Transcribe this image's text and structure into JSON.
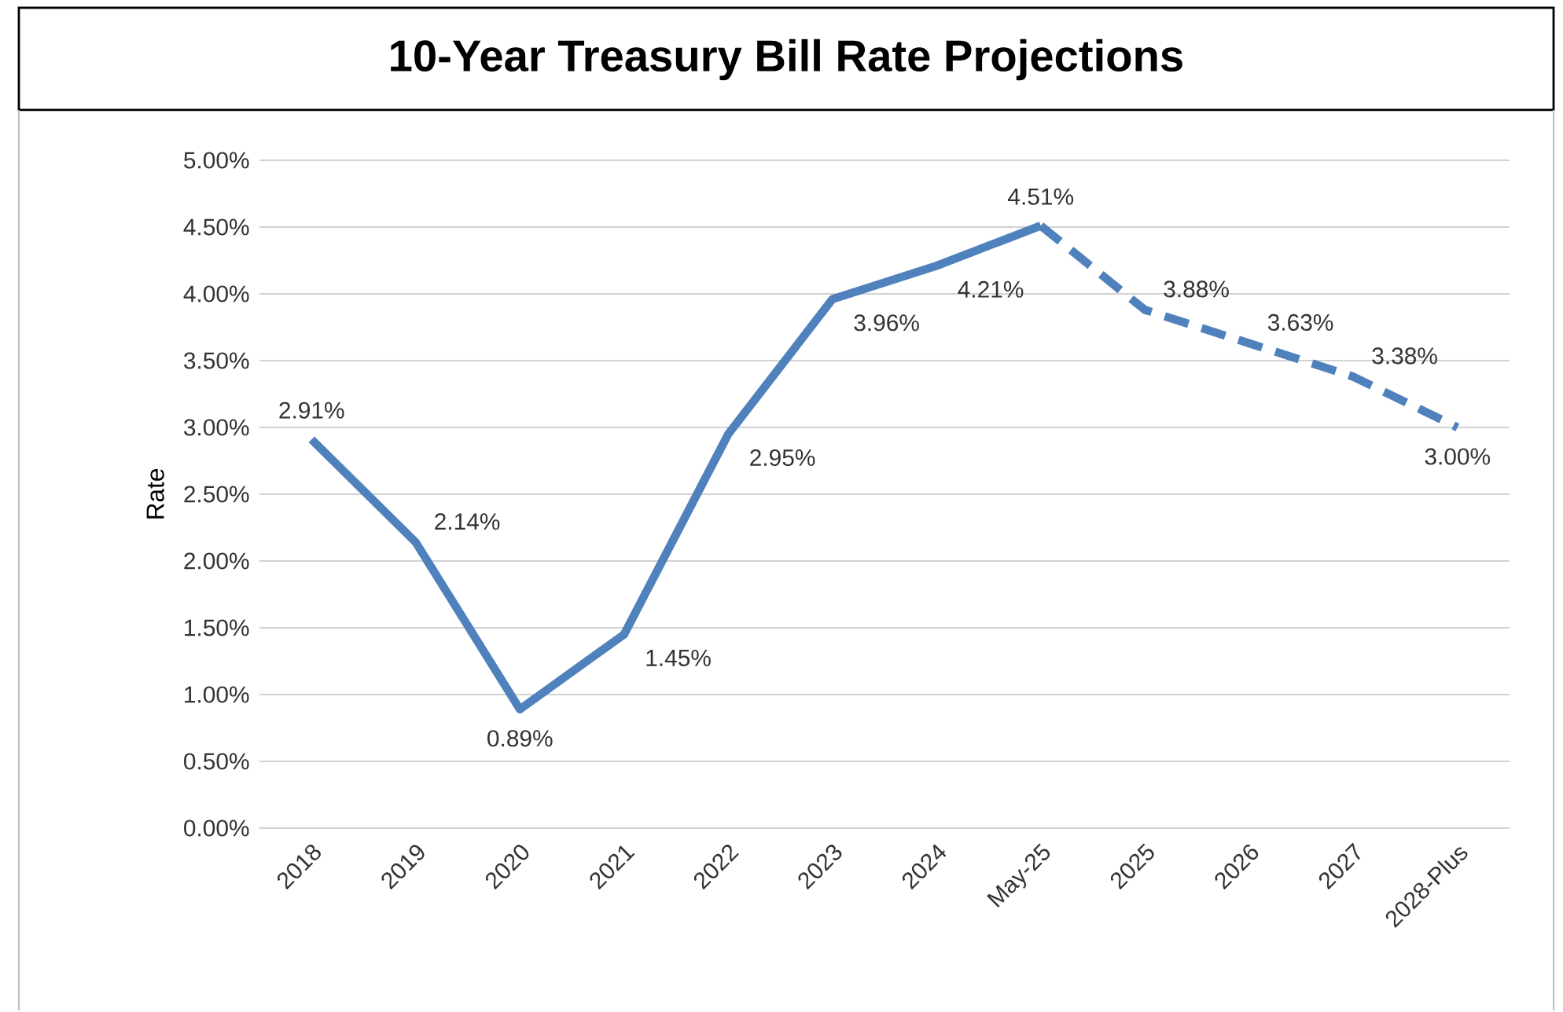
{
  "chart_data": {
    "type": "line",
    "title": "10-Year Treasury Bill Rate Projections",
    "ylabel": "Rate",
    "categories": [
      "2018",
      "2019",
      "2020",
      "2021",
      "2022",
      "2023",
      "2024",
      "May-25",
      "2025",
      "2026",
      "2027",
      "2028-Plus"
    ],
    "series": [
      {
        "color": "#4f81bd",
        "line_style": "solid",
        "values": [
          2.91,
          2.14,
          0.89,
          1.45,
          2.95,
          3.96,
          4.21,
          4.51,
          null,
          null,
          null,
          null
        ],
        "value_labels": [
          "2.91%",
          "2.14%",
          "0.89%",
          "1.45%",
          "2.95%",
          "3.96%",
          "4.21%",
          "4.51%",
          null,
          null,
          null,
          null
        ]
      },
      {
        "color": "#4f81bd",
        "line_style": "dashed",
        "values": [
          null,
          null,
          null,
          null,
          null,
          null,
          null,
          4.51,
          3.88,
          3.63,
          3.38,
          3.0
        ],
        "value_labels": [
          null,
          null,
          null,
          null,
          null,
          null,
          null,
          null,
          "3.88%",
          "3.63%",
          "3.38%",
          "3.00%"
        ]
      }
    ],
    "ylim": [
      0,
      5
    ],
    "yticks": [
      {
        "value": 0,
        "label": "0.00%"
      },
      {
        "value": 0.5,
        "label": "0.50%"
      },
      {
        "value": 1,
        "label": "1.00%"
      },
      {
        "value": 1.5,
        "label": "1.50%"
      },
      {
        "value": 2,
        "label": "2.00%"
      },
      {
        "value": 2.5,
        "label": "2.50%"
      },
      {
        "value": 3,
        "label": "3.00%"
      },
      {
        "value": 3.5,
        "label": "3.50%"
      },
      {
        "value": 4,
        "label": "4.00%"
      },
      {
        "value": 4.5,
        "label": "4.50%"
      },
      {
        "value": 5,
        "label": "5.00%"
      }
    ],
    "grid": "y",
    "marker": "none"
  }
}
